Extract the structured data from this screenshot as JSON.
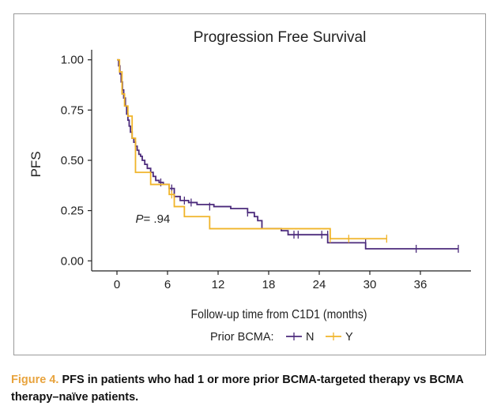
{
  "chart_data": {
    "type": "line",
    "subtype": "kaplan-meier step",
    "title": "Progression Free Survival",
    "xlabel": "Follow-up time from C1D1 (months)",
    "ylabel": "PFS",
    "xlim": [
      -3,
      42
    ],
    "ylim": [
      -0.05,
      1.05
    ],
    "xticks": [
      0,
      6,
      12,
      18,
      24,
      30,
      36
    ],
    "yticks": [
      0.0,
      0.25,
      0.5,
      0.75,
      1.0
    ],
    "ytick_labels": [
      "0.00",
      "0.25",
      "0.50",
      "0.75",
      "1.00"
    ],
    "grid": false,
    "annotation": {
      "italic": "P",
      "rest": "= .94",
      "x": 2.2,
      "y": 0.19
    },
    "legend": {
      "title": "Prior BCMA:",
      "placement": "bottom"
    },
    "series": [
      {
        "name": "N",
        "color": "#4b2a7b",
        "x": [
          0,
          0.2,
          0.35,
          0.5,
          0.65,
          0.8,
          1.0,
          1.15,
          1.3,
          1.45,
          1.6,
          1.8,
          2.0,
          2.2,
          2.4,
          2.6,
          2.8,
          3.0,
          3.3,
          3.6,
          4.0,
          4.3,
          4.6,
          5.0,
          5.5,
          6.2,
          6.8,
          7.5,
          8.5,
          9.5,
          11.5,
          13.5,
          15.5,
          16.3,
          16.7,
          17.2,
          19.5,
          20.3,
          25.0,
          29.5,
          40.5
        ],
        "y": [
          1.0,
          0.97,
          0.93,
          0.89,
          0.85,
          0.81,
          0.77,
          0.73,
          0.7,
          0.67,
          0.64,
          0.61,
          0.59,
          0.57,
          0.55,
          0.53,
          0.52,
          0.5,
          0.48,
          0.46,
          0.44,
          0.42,
          0.4,
          0.39,
          0.38,
          0.36,
          0.32,
          0.3,
          0.29,
          0.28,
          0.27,
          0.26,
          0.24,
          0.22,
          0.2,
          0.16,
          0.15,
          0.13,
          0.09,
          0.06,
          0.06
        ],
        "censored_x": [
          5.2,
          6.5,
          8.0,
          8.8,
          11.0,
          15.5,
          21.0,
          21.5,
          24.3,
          25.0,
          29.5,
          35.5,
          40.5
        ],
        "censored_y": [
          0.39,
          0.36,
          0.3,
          0.29,
          0.27,
          0.24,
          0.13,
          0.13,
          0.13,
          0.13,
          0.09,
          0.06,
          0.06
        ]
      },
      {
        "name": "Y",
        "color": "#f0b429",
        "x": [
          0,
          0.3,
          0.6,
          0.9,
          1.3,
          1.8,
          2.2,
          4.0,
          6.2,
          6.8,
          8.0,
          11.0,
          25.3,
          32.0
        ],
        "y": [
          1.0,
          0.94,
          0.83,
          0.77,
          0.72,
          0.61,
          0.44,
          0.38,
          0.33,
          0.27,
          0.22,
          0.16,
          0.11,
          0.11
        ],
        "censored_x": [
          6.5,
          25.3,
          27.5,
          32.0
        ],
        "censored_y": [
          0.33,
          0.11,
          0.11,
          0.11
        ]
      }
    ]
  },
  "caption": {
    "label": "Figure 4.",
    "text": "PFS in patients who had 1 or more prior BCMA-targeted therapy vs BCMA therapy–naïve patients."
  }
}
